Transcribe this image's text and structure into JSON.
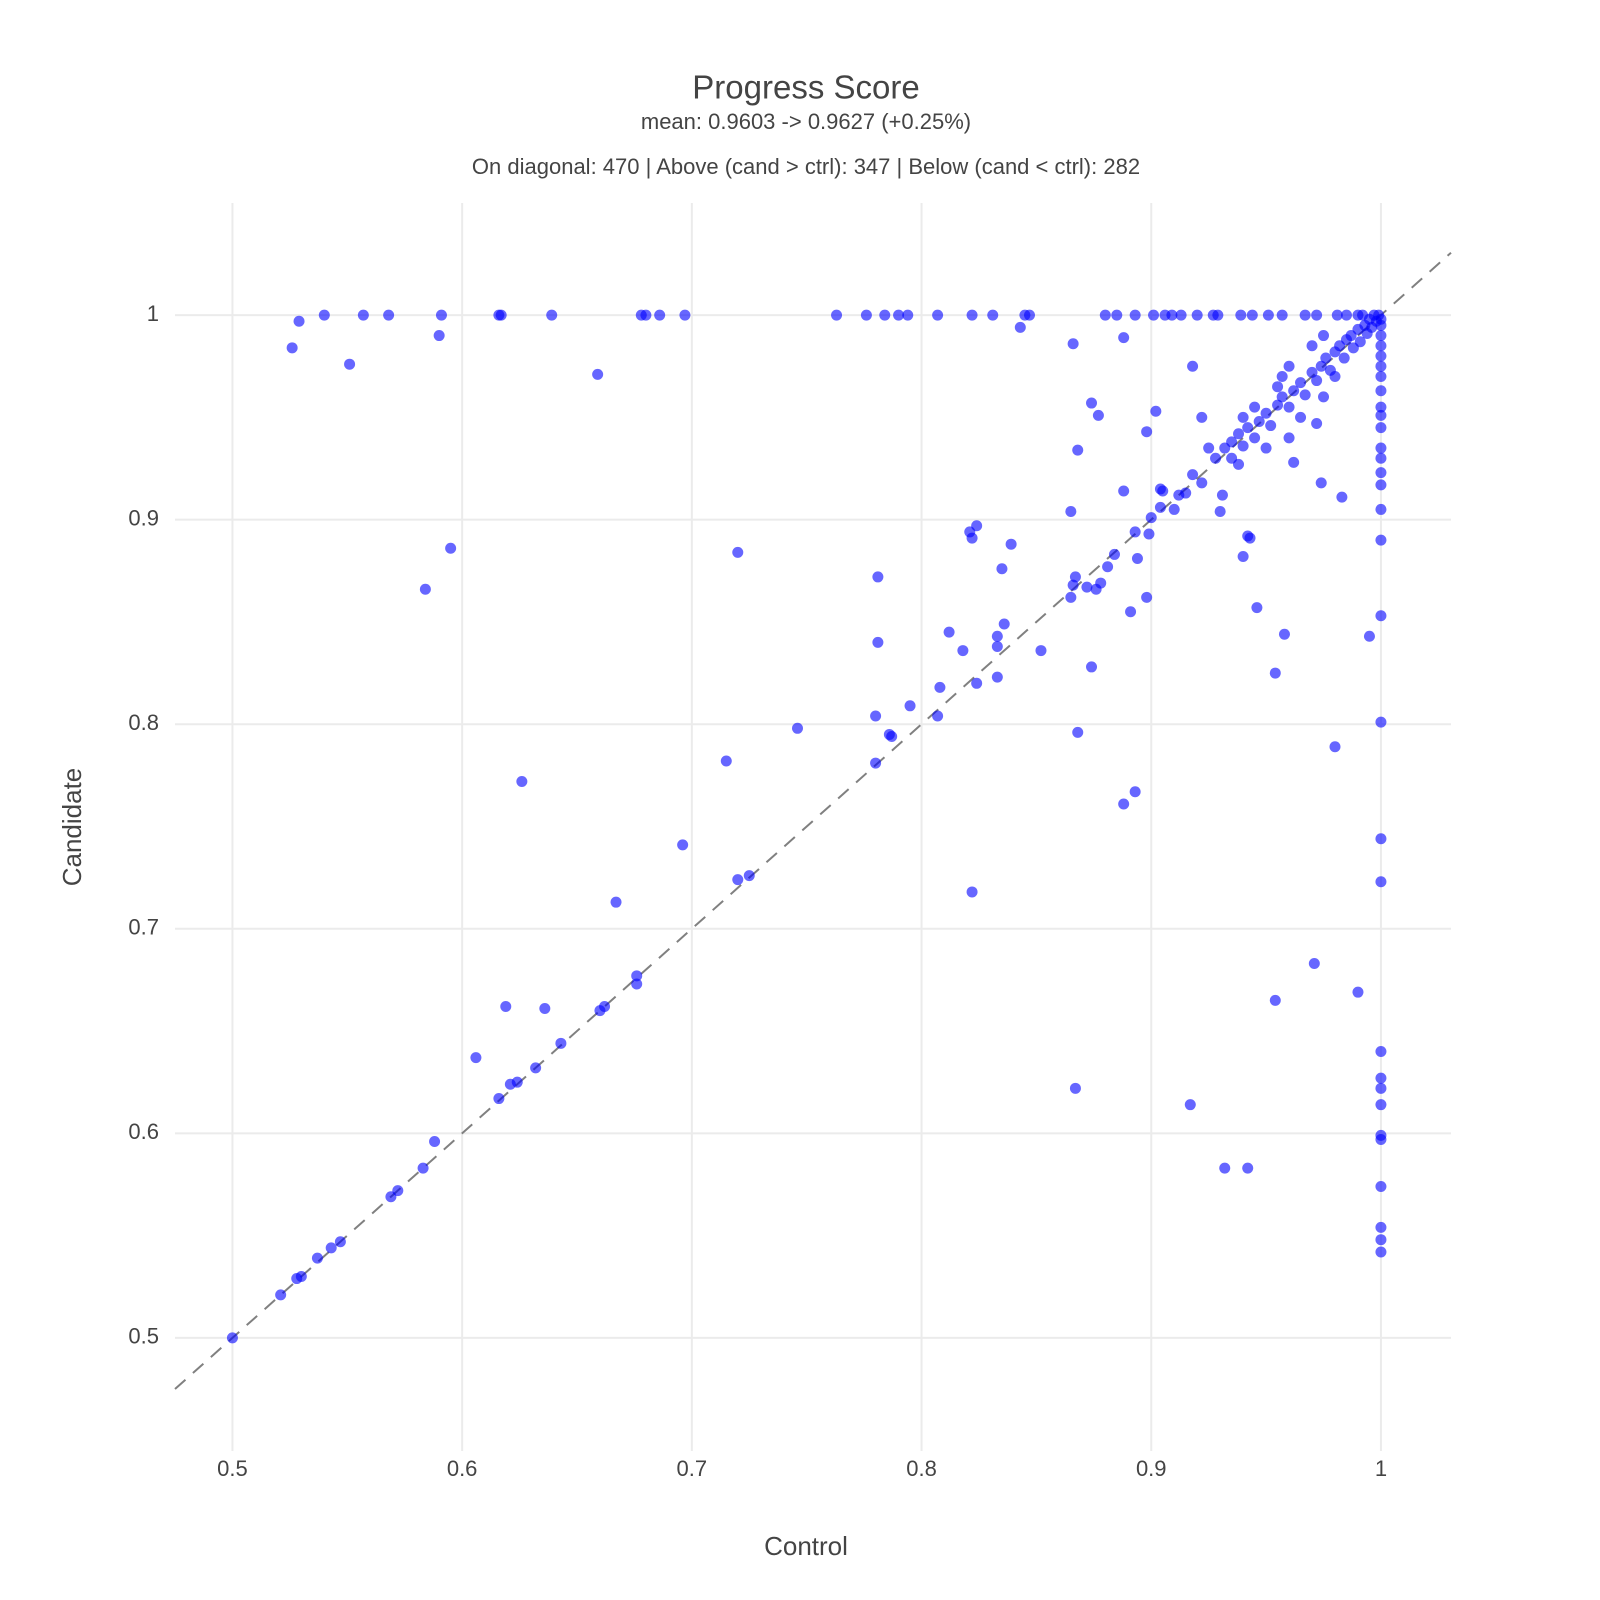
{
  "chart_data": {
    "type": "scatter",
    "title": "Progress Score",
    "subtitle": "mean: 0.9603 -> 0.9627 (+0.25%)",
    "annotation": "On diagonal: 470 | Above (cand > ctrl): 347 | Below (cand < ctrl): 282",
    "x_label": "Control",
    "y_label": "Candidate",
    "color": "#0000ff",
    "opacity": 0.6,
    "grid": true,
    "diagonal": true,
    "xlim": [
      0.475,
      1.0305
    ],
    "ylim": [
      0.4447,
      1.0548
    ],
    "xticks": [
      0.5,
      0.6,
      0.7,
      0.8,
      0.9,
      1
    ],
    "yticks": [
      0.5,
      0.6,
      0.7,
      0.8,
      0.9,
      1
    ],
    "x": [
      0.54,
      0.557,
      0.568,
      0.591,
      0.616,
      0.617,
      0.639,
      0.678,
      0.68,
      0.686,
      0.697,
      0.763,
      0.776,
      0.784,
      0.79,
      0.794,
      0.807,
      0.822,
      0.831,
      0.845,
      0.847,
      0.88,
      0.885,
      0.893,
      0.901,
      0.906,
      0.909,
      0.913,
      0.92,
      0.927,
      0.929,
      0.939,
      0.944,
      0.951,
      0.957,
      0.967,
      0.972,
      0.981,
      0.99,
      1,
      1,
      1,
      1,
      1,
      1,
      1,
      1,
      1,
      1,
      1,
      1,
      1,
      1,
      1,
      1,
      1,
      1,
      1,
      1,
      1,
      1,
      1,
      1,
      1,
      1,
      1,
      1,
      1,
      1,
      1,
      0.529,
      0.526,
      0.551,
      0.59,
      0.659,
      0.595,
      0.584,
      0.626,
      0.72,
      0.715,
      0.746,
      0.696,
      0.72,
      0.725,
      0.667,
      0.676,
      0.676,
      0.662,
      0.66,
      0.636,
      0.619,
      0.643,
      0.606,
      0.632,
      0.624,
      0.621,
      0.616,
      0.588,
      0.583,
      0.572,
      0.569,
      0.547,
      0.543,
      0.537,
      0.53,
      0.528,
      0.521,
      0.5,
      0.781,
      0.781,
      0.78,
      0.78,
      0.786,
      0.787,
      0.795,
      0.807,
      0.808,
      0.812,
      0.818,
      0.824,
      0.821,
      0.824,
      0.822,
      0.839,
      0.835,
      0.836,
      0.833,
      0.833,
      0.833,
      0.852,
      0.822,
      0.865,
      0.867,
      0.866,
      0.872,
      0.865,
      0.876,
      0.878,
      0.881,
      0.884,
      0.891,
      0.894,
      0.893,
      0.899,
      0.898,
      0.874,
      0.868,
      0.893,
      0.888,
      0.867,
      0.917,
      0.932,
      0.942,
      0.954,
      0.971,
      0.99,
      0.98,
      0.954,
      0.958,
      0.946,
      0.94,
      0.943,
      0.942,
      0.93,
      0.931,
      0.91,
      0.904,
      0.9,
      0.888,
      0.904,
      0.905,
      0.912,
      0.915,
      0.918,
      0.922,
      0.983,
      0.974,
      0.962,
      0.868,
      0.874,
      0.877,
      0.898,
      0.902,
      0.922,
      0.918,
      0.866,
      0.888,
      0.843,
      0.995,
      0.928,
      0.932,
      0.935,
      0.938,
      0.94,
      0.942,
      0.945,
      0.947,
      0.95,
      0.952,
      0.955,
      0.957,
      0.96,
      0.962,
      0.965,
      0.967,
      0.97,
      0.972,
      0.974,
      0.976,
      0.978,
      0.98,
      0.982,
      0.984,
      0.985,
      0.987,
      0.988,
      0.99,
      0.991,
      0.993,
      0.994,
      0.995,
      0.996,
      0.997,
      0.998,
      0.999,
      0.985,
      0.992,
      0.975,
      0.97,
      0.96,
      0.955,
      0.945,
      0.935,
      0.95,
      0.965,
      0.975,
      0.96,
      0.98,
      0.925,
      0.94,
      0.957,
      0.938,
      0.972
    ],
    "values": [
      1,
      1,
      1,
      1,
      1,
      1,
      1,
      1,
      1,
      1,
      1,
      1,
      1,
      1,
      1,
      1,
      1,
      1,
      1,
      1,
      1,
      1,
      1,
      1,
      1,
      1,
      1,
      1,
      1,
      1,
      1,
      1,
      1,
      1,
      1,
      1,
      1,
      1,
      1,
      0.542,
      0.548,
      0.554,
      0.574,
      0.597,
      0.599,
      0.614,
      0.622,
      0.627,
      0.64,
      0.723,
      0.744,
      0.801,
      0.853,
      0.89,
      0.905,
      0.917,
      0.923,
      0.93,
      0.935,
      0.945,
      0.951,
      0.955,
      0.963,
      0.97,
      0.975,
      0.98,
      0.985,
      0.99,
      0.995,
      0.998,
      0.997,
      0.984,
      0.976,
      0.99,
      0.971,
      0.886,
      0.866,
      0.772,
      0.884,
      0.782,
      0.798,
      0.741,
      0.724,
      0.726,
      0.713,
      0.677,
      0.673,
      0.662,
      0.66,
      0.661,
      0.662,
      0.644,
      0.637,
      0.632,
      0.625,
      0.624,
      0.617,
      0.596,
      0.583,
      0.572,
      0.569,
      0.547,
      0.544,
      0.539,
      0.53,
      0.529,
      0.521,
      0.5,
      0.872,
      0.84,
      0.804,
      0.781,
      0.795,
      0.794,
      0.809,
      0.804,
      0.818,
      0.845,
      0.836,
      0.82,
      0.894,
      0.897,
      0.891,
      0.888,
      0.876,
      0.849,
      0.843,
      0.838,
      0.823,
      0.836,
      0.718,
      0.904,
      0.872,
      0.868,
      0.867,
      0.862,
      0.866,
      0.869,
      0.877,
      0.883,
      0.855,
      0.881,
      0.894,
      0.893,
      0.862,
      0.828,
      0.796,
      0.767,
      0.761,
      0.622,
      0.614,
      0.583,
      0.583,
      0.665,
      0.683,
      0.669,
      0.789,
      0.825,
      0.844,
      0.857,
      0.882,
      0.891,
      0.892,
      0.904,
      0.912,
      0.905,
      0.906,
      0.901,
      0.914,
      0.915,
      0.914,
      0.912,
      0.913,
      0.922,
      0.918,
      0.911,
      0.918,
      0.928,
      0.934,
      0.957,
      0.951,
      0.943,
      0.953,
      0.95,
      0.975,
      0.986,
      0.989,
      0.994,
      0.843,
      0.93,
      0.935,
      0.938,
      0.942,
      0.936,
      0.945,
      0.94,
      0.948,
      0.952,
      0.946,
      0.956,
      0.96,
      0.955,
      0.963,
      0.967,
      0.961,
      0.972,
      0.968,
      0.975,
      0.979,
      0.973,
      0.982,
      0.985,
      0.979,
      0.988,
      0.99,
      0.984,
      0.993,
      0.987,
      0.995,
      0.991,
      0.998,
      0.994,
      1,
      0.997,
      1,
      1,
      1,
      0.99,
      0.985,
      0.975,
      0.965,
      0.955,
      0.93,
      0.935,
      0.95,
      0.96,
      0.94,
      0.97,
      0.935,
      0.95,
      0.97,
      0.927,
      0.947
    ]
  }
}
